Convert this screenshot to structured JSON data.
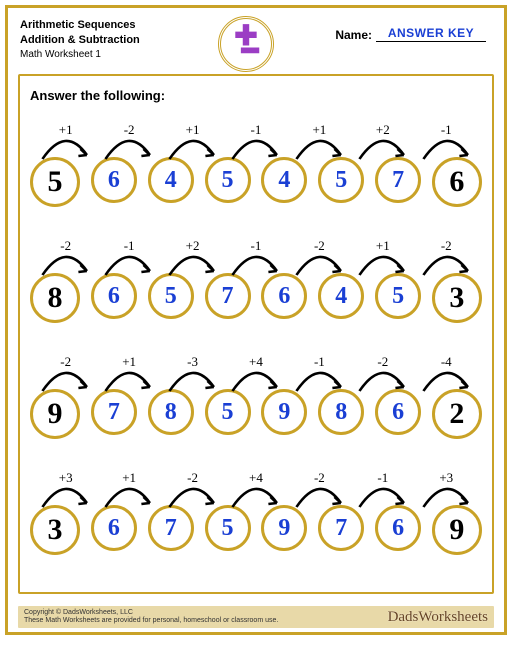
{
  "header": {
    "title1": "Arithmetic Sequences",
    "title2": "Addition & Subtraction",
    "title3": "Math Worksheet 1",
    "name_label": "Name:",
    "name_value": "ANSWER KEY"
  },
  "instruction": "Answer the following:",
  "colors": {
    "border": "#c9a227",
    "answer": "#1a3fd4",
    "given": "#000000",
    "icon": "#9b3dc4"
  },
  "rows": [
    {
      "start": 5,
      "ops": [
        "+1",
        "-2",
        "+1",
        "-1",
        "+1",
        "+2",
        "-1"
      ],
      "mids": [
        6,
        4,
        5,
        4,
        5,
        7
      ],
      "end": 6
    },
    {
      "start": 8,
      "ops": [
        "-2",
        "-1",
        "+2",
        "-1",
        "-2",
        "+1",
        "-2"
      ],
      "mids": [
        6,
        5,
        7,
        6,
        4,
        5
      ],
      "end": 3
    },
    {
      "start": 9,
      "ops": [
        "-2",
        "+1",
        "-3",
        "+4",
        "-1",
        "-2",
        "-4"
      ],
      "mids": [
        7,
        8,
        5,
        9,
        8,
        6
      ],
      "end": 2
    },
    {
      "start": 3,
      "ops": [
        "+3",
        "+1",
        "-2",
        "+4",
        "-2",
        "-1",
        "+3"
      ],
      "mids": [
        6,
        7,
        5,
        9,
        7,
        6
      ],
      "end": 9
    }
  ],
  "footer": {
    "copyright": "Copyright © DadsWorksheets, LLC",
    "note": "These Math Worksheets are provided for personal, homeschool or classroom use.",
    "brand": "DadsWorksheets"
  }
}
